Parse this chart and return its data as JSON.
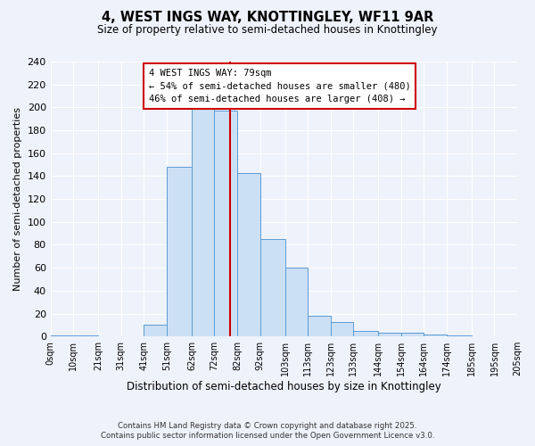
{
  "title": "4, WEST INGS WAY, KNOTTINGLEY, WF11 9AR",
  "subtitle": "Size of property relative to semi-detached houses in Knottingley",
  "xlabel": "Distribution of semi-detached houses by size in Knottingley",
  "ylabel": "Number of semi-detached properties",
  "bins": [
    0,
    10,
    21,
    31,
    41,
    51,
    62,
    72,
    82,
    92,
    103,
    113,
    123,
    133,
    144,
    154,
    164,
    174,
    185,
    195,
    205
  ],
  "counts": [
    1,
    1,
    0,
    0,
    10,
    148,
    200,
    197,
    143,
    85,
    60,
    18,
    13,
    5,
    3,
    3,
    2,
    1,
    0,
    0
  ],
  "bar_color": "#cce0f5",
  "bar_edge_color": "#5b9bd5",
  "property_value": 79,
  "vline_color": "#cc0000",
  "annotation_box_edge_color": "#cc0000",
  "annotation_title": "4 WEST INGS WAY: 79sqm",
  "annotation_line1": "← 54% of semi-detached houses are smaller (480)",
  "annotation_line2": "46% of semi-detached houses are larger (408) →",
  "ylim": [
    0,
    240
  ],
  "yticks": [
    0,
    20,
    40,
    60,
    80,
    100,
    120,
    140,
    160,
    180,
    200,
    220,
    240
  ],
  "tick_labels": [
    "0sqm",
    "10sqm",
    "21sqm",
    "31sqm",
    "41sqm",
    "51sqm",
    "62sqm",
    "72sqm",
    "82sqm",
    "92sqm",
    "103sqm",
    "113sqm",
    "123sqm",
    "133sqm",
    "144sqm",
    "154sqm",
    "164sqm",
    "174sqm",
    "185sqm",
    "195sqm",
    "205sqm"
  ],
  "background_color": "#eef2fa",
  "grid_color": "#ffffff",
  "footer_line1": "Contains HM Land Registry data © Crown copyright and database right 2025.",
  "footer_line2": "Contains public sector information licensed under the Open Government Licence v3.0."
}
